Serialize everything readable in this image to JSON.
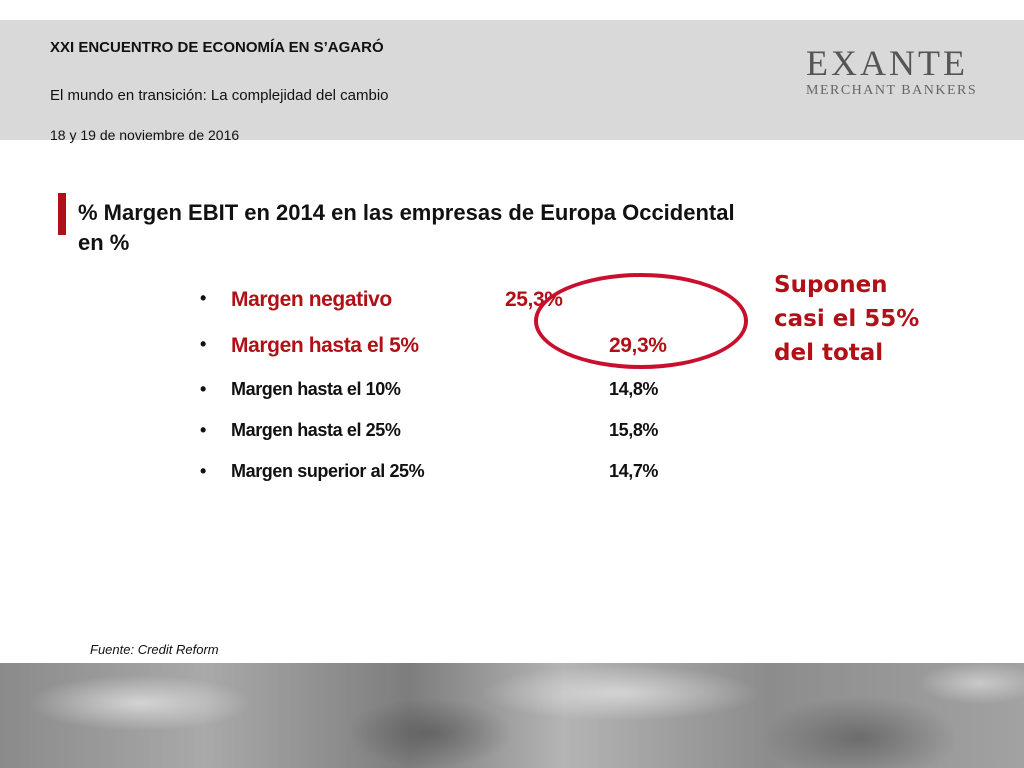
{
  "header": {
    "conference_title": "XXI ENCUENTRO DE ECONOMÍA EN S’AGARÓ",
    "conference_subtitle": "El mundo en transición: La complejidad del cambio",
    "conference_date": "18 y 19 de noviembre de 2016",
    "logo_main": "EXANTE",
    "logo_sub": "MERCHANT BANKERS"
  },
  "slide": {
    "title": "% Margen EBIT en 2014 en las empresas de Europa Occidental en %",
    "bullet_char": "•",
    "items": [
      {
        "label": "Margen negativo",
        "value": "25,3%"
      },
      {
        "label": "Margen hasta el 5%",
        "value": "29,3%"
      },
      {
        "label": "Margen hasta el 10%",
        "value": "14,8%"
      },
      {
        "label": "Margen hasta el 25%",
        "value": "15,8%"
      },
      {
        "label": "Margen superior al 25%",
        "value": "14,7%"
      }
    ],
    "callout_lines": [
      "Suponen",
      "casi el 55%",
      "del total"
    ],
    "source": "Fuente: Credit Reform"
  },
  "colors": {
    "accent_red": "#b01016",
    "header_gray": "#d9d9d9"
  }
}
